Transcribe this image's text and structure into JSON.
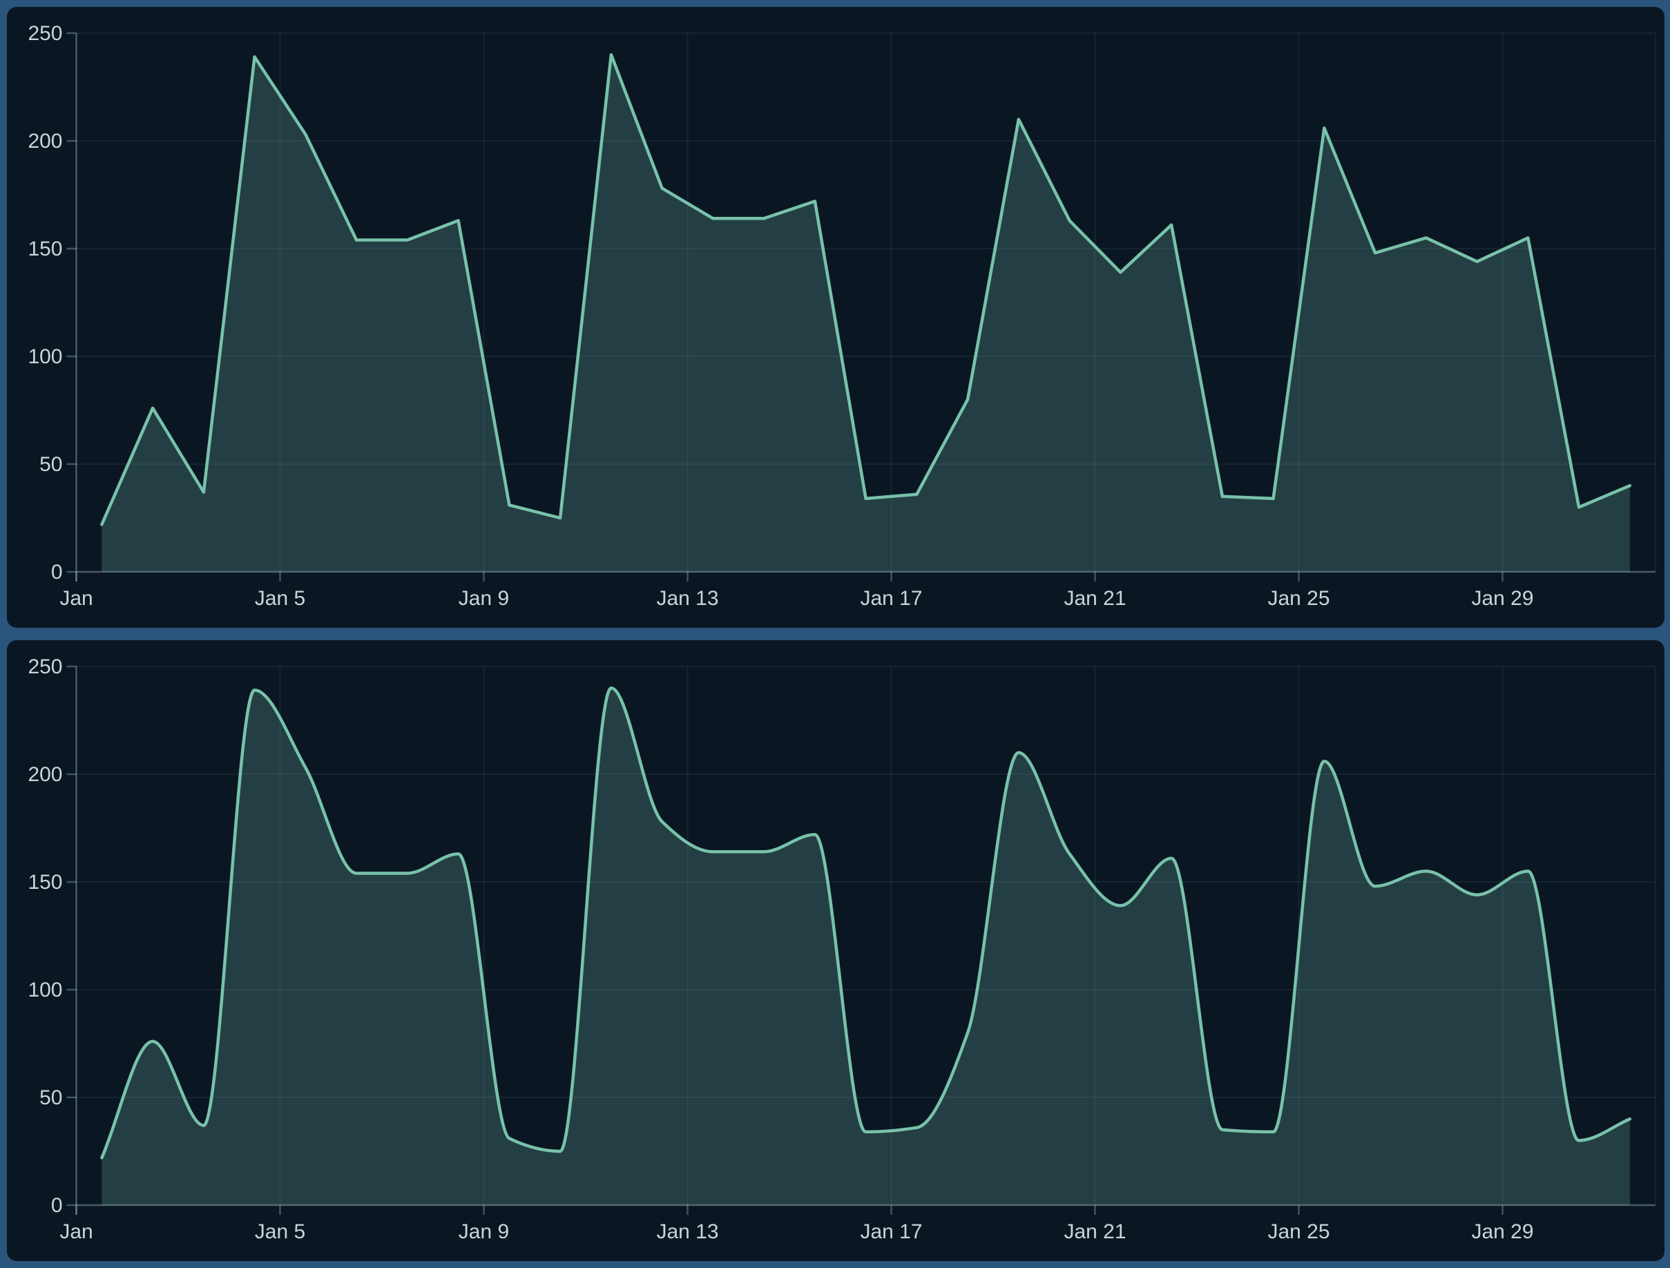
{
  "page": {
    "frame_color": "#2a567e",
    "panel_color": "#0a1723",
    "line_color": "#78c2aa",
    "fill_color": "rgba(120,194,170,0.24)",
    "label_color": "#c9d4db",
    "gridline_color": "rgba(165,195,215,0.08)",
    "axis_color": "rgba(185,210,225,0.32)"
  },
  "chart_data": [
    {
      "type": "area",
      "interpolation": "linear",
      "title": "",
      "xlabel": "",
      "ylabel": "",
      "ylim": [
        0,
        250
      ],
      "grid": true,
      "legend": null,
      "x": [
        "Jan 1",
        "Jan 2",
        "Jan 3",
        "Jan 4",
        "Jan 5",
        "Jan 6",
        "Jan 7",
        "Jan 8",
        "Jan 9",
        "Jan 10",
        "Jan 11",
        "Jan 12",
        "Jan 13",
        "Jan 14",
        "Jan 15",
        "Jan 16",
        "Jan 17",
        "Jan 18",
        "Jan 19",
        "Jan 20",
        "Jan 21",
        "Jan 22",
        "Jan 23",
        "Jan 24",
        "Jan 25",
        "Jan 26",
        "Jan 27",
        "Jan 28",
        "Jan 29",
        "Jan 30",
        "Jan 31"
      ],
      "values": [
        22,
        76,
        37,
        239,
        203,
        154,
        154,
        163,
        31,
        25,
        240,
        178,
        164,
        164,
        172,
        34,
        36,
        80,
        210,
        163,
        139,
        161,
        35,
        34,
        206,
        148,
        155,
        144,
        155,
        30,
        40
      ],
      "x_tick_days": [
        0,
        4,
        8,
        12,
        16,
        20,
        24,
        28
      ],
      "x_tick_labels": [
        "Jan",
        "Jan 5",
        "Jan 9",
        "Jan 13",
        "Jan 17",
        "Jan 21",
        "Jan 25",
        "Jan 29"
      ],
      "y_ticks": [
        0,
        50,
        100,
        150,
        200,
        250
      ],
      "y_tick_labels": [
        "0",
        "50",
        "100",
        "150",
        "200",
        "250"
      ]
    },
    {
      "type": "area",
      "interpolation": "smooth",
      "title": "",
      "xlabel": "",
      "ylabel": "",
      "ylim": [
        0,
        250
      ],
      "grid": true,
      "legend": null,
      "x": [
        "Jan 1",
        "Jan 2",
        "Jan 3",
        "Jan 4",
        "Jan 5",
        "Jan 6",
        "Jan 7",
        "Jan 8",
        "Jan 9",
        "Jan 10",
        "Jan 11",
        "Jan 12",
        "Jan 13",
        "Jan 14",
        "Jan 15",
        "Jan 16",
        "Jan 17",
        "Jan 18",
        "Jan 19",
        "Jan 20",
        "Jan 21",
        "Jan 22",
        "Jan 23",
        "Jan 24",
        "Jan 25",
        "Jan 26",
        "Jan 27",
        "Jan 28",
        "Jan 29",
        "Jan 30",
        "Jan 31"
      ],
      "values": [
        22,
        76,
        37,
        239,
        203,
        154,
        154,
        163,
        31,
        25,
        240,
        178,
        164,
        164,
        172,
        34,
        36,
        80,
        210,
        163,
        139,
        161,
        35,
        34,
        206,
        148,
        155,
        144,
        155,
        30,
        40
      ],
      "x_tick_days": [
        0,
        4,
        8,
        12,
        16,
        20,
        24,
        28
      ],
      "x_tick_labels": [
        "Jan",
        "Jan 5",
        "Jan 9",
        "Jan 13",
        "Jan 17",
        "Jan 21",
        "Jan 25",
        "Jan 29"
      ],
      "y_ticks": [
        0,
        50,
        100,
        150,
        200,
        250
      ],
      "y_tick_labels": [
        "0",
        "50",
        "100",
        "150",
        "200",
        "250"
      ]
    }
  ]
}
